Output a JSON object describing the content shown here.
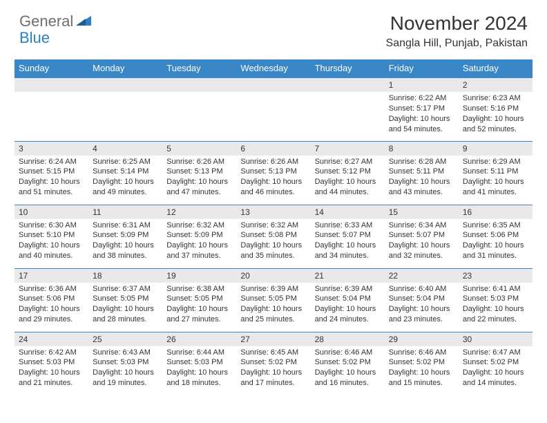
{
  "logo": {
    "general": "General",
    "blue": "Blue"
  },
  "title": "November 2024",
  "location": "Sangla Hill, Punjab, Pakistan",
  "colors": {
    "header_bg": "#3a87c7",
    "header_text": "#ffffff",
    "daynum_bg": "#e9e9e9",
    "border": "#3a87c7",
    "logo_gray": "#6f6f6f",
    "logo_blue": "#2b7fc2"
  },
  "weekdays": [
    "Sunday",
    "Monday",
    "Tuesday",
    "Wednesday",
    "Thursday",
    "Friday",
    "Saturday"
  ],
  "weeks": [
    [
      {
        "day": "",
        "sunrise": "",
        "sunset": "",
        "daylight": ""
      },
      {
        "day": "",
        "sunrise": "",
        "sunset": "",
        "daylight": ""
      },
      {
        "day": "",
        "sunrise": "",
        "sunset": "",
        "daylight": ""
      },
      {
        "day": "",
        "sunrise": "",
        "sunset": "",
        "daylight": ""
      },
      {
        "day": "",
        "sunrise": "",
        "sunset": "",
        "daylight": ""
      },
      {
        "day": "1",
        "sunrise": "Sunrise: 6:22 AM",
        "sunset": "Sunset: 5:17 PM",
        "daylight": "Daylight: 10 hours and 54 minutes."
      },
      {
        "day": "2",
        "sunrise": "Sunrise: 6:23 AM",
        "sunset": "Sunset: 5:16 PM",
        "daylight": "Daylight: 10 hours and 52 minutes."
      }
    ],
    [
      {
        "day": "3",
        "sunrise": "Sunrise: 6:24 AM",
        "sunset": "Sunset: 5:15 PM",
        "daylight": "Daylight: 10 hours and 51 minutes."
      },
      {
        "day": "4",
        "sunrise": "Sunrise: 6:25 AM",
        "sunset": "Sunset: 5:14 PM",
        "daylight": "Daylight: 10 hours and 49 minutes."
      },
      {
        "day": "5",
        "sunrise": "Sunrise: 6:26 AM",
        "sunset": "Sunset: 5:13 PM",
        "daylight": "Daylight: 10 hours and 47 minutes."
      },
      {
        "day": "6",
        "sunrise": "Sunrise: 6:26 AM",
        "sunset": "Sunset: 5:13 PM",
        "daylight": "Daylight: 10 hours and 46 minutes."
      },
      {
        "day": "7",
        "sunrise": "Sunrise: 6:27 AM",
        "sunset": "Sunset: 5:12 PM",
        "daylight": "Daylight: 10 hours and 44 minutes."
      },
      {
        "day": "8",
        "sunrise": "Sunrise: 6:28 AM",
        "sunset": "Sunset: 5:11 PM",
        "daylight": "Daylight: 10 hours and 43 minutes."
      },
      {
        "day": "9",
        "sunrise": "Sunrise: 6:29 AM",
        "sunset": "Sunset: 5:11 PM",
        "daylight": "Daylight: 10 hours and 41 minutes."
      }
    ],
    [
      {
        "day": "10",
        "sunrise": "Sunrise: 6:30 AM",
        "sunset": "Sunset: 5:10 PM",
        "daylight": "Daylight: 10 hours and 40 minutes."
      },
      {
        "day": "11",
        "sunrise": "Sunrise: 6:31 AM",
        "sunset": "Sunset: 5:09 PM",
        "daylight": "Daylight: 10 hours and 38 minutes."
      },
      {
        "day": "12",
        "sunrise": "Sunrise: 6:32 AM",
        "sunset": "Sunset: 5:09 PM",
        "daylight": "Daylight: 10 hours and 37 minutes."
      },
      {
        "day": "13",
        "sunrise": "Sunrise: 6:32 AM",
        "sunset": "Sunset: 5:08 PM",
        "daylight": "Daylight: 10 hours and 35 minutes."
      },
      {
        "day": "14",
        "sunrise": "Sunrise: 6:33 AM",
        "sunset": "Sunset: 5:07 PM",
        "daylight": "Daylight: 10 hours and 34 minutes."
      },
      {
        "day": "15",
        "sunrise": "Sunrise: 6:34 AM",
        "sunset": "Sunset: 5:07 PM",
        "daylight": "Daylight: 10 hours and 32 minutes."
      },
      {
        "day": "16",
        "sunrise": "Sunrise: 6:35 AM",
        "sunset": "Sunset: 5:06 PM",
        "daylight": "Daylight: 10 hours and 31 minutes."
      }
    ],
    [
      {
        "day": "17",
        "sunrise": "Sunrise: 6:36 AM",
        "sunset": "Sunset: 5:06 PM",
        "daylight": "Daylight: 10 hours and 29 minutes."
      },
      {
        "day": "18",
        "sunrise": "Sunrise: 6:37 AM",
        "sunset": "Sunset: 5:05 PM",
        "daylight": "Daylight: 10 hours and 28 minutes."
      },
      {
        "day": "19",
        "sunrise": "Sunrise: 6:38 AM",
        "sunset": "Sunset: 5:05 PM",
        "daylight": "Daylight: 10 hours and 27 minutes."
      },
      {
        "day": "20",
        "sunrise": "Sunrise: 6:39 AM",
        "sunset": "Sunset: 5:05 PM",
        "daylight": "Daylight: 10 hours and 25 minutes."
      },
      {
        "day": "21",
        "sunrise": "Sunrise: 6:39 AM",
        "sunset": "Sunset: 5:04 PM",
        "daylight": "Daylight: 10 hours and 24 minutes."
      },
      {
        "day": "22",
        "sunrise": "Sunrise: 6:40 AM",
        "sunset": "Sunset: 5:04 PM",
        "daylight": "Daylight: 10 hours and 23 minutes."
      },
      {
        "day": "23",
        "sunrise": "Sunrise: 6:41 AM",
        "sunset": "Sunset: 5:03 PM",
        "daylight": "Daylight: 10 hours and 22 minutes."
      }
    ],
    [
      {
        "day": "24",
        "sunrise": "Sunrise: 6:42 AM",
        "sunset": "Sunset: 5:03 PM",
        "daylight": "Daylight: 10 hours and 21 minutes."
      },
      {
        "day": "25",
        "sunrise": "Sunrise: 6:43 AM",
        "sunset": "Sunset: 5:03 PM",
        "daylight": "Daylight: 10 hours and 19 minutes."
      },
      {
        "day": "26",
        "sunrise": "Sunrise: 6:44 AM",
        "sunset": "Sunset: 5:03 PM",
        "daylight": "Daylight: 10 hours and 18 minutes."
      },
      {
        "day": "27",
        "sunrise": "Sunrise: 6:45 AM",
        "sunset": "Sunset: 5:02 PM",
        "daylight": "Daylight: 10 hours and 17 minutes."
      },
      {
        "day": "28",
        "sunrise": "Sunrise: 6:46 AM",
        "sunset": "Sunset: 5:02 PM",
        "daylight": "Daylight: 10 hours and 16 minutes."
      },
      {
        "day": "29",
        "sunrise": "Sunrise: 6:46 AM",
        "sunset": "Sunset: 5:02 PM",
        "daylight": "Daylight: 10 hours and 15 minutes."
      },
      {
        "day": "30",
        "sunrise": "Sunrise: 6:47 AM",
        "sunset": "Sunset: 5:02 PM",
        "daylight": "Daylight: 10 hours and 14 minutes."
      }
    ]
  ]
}
